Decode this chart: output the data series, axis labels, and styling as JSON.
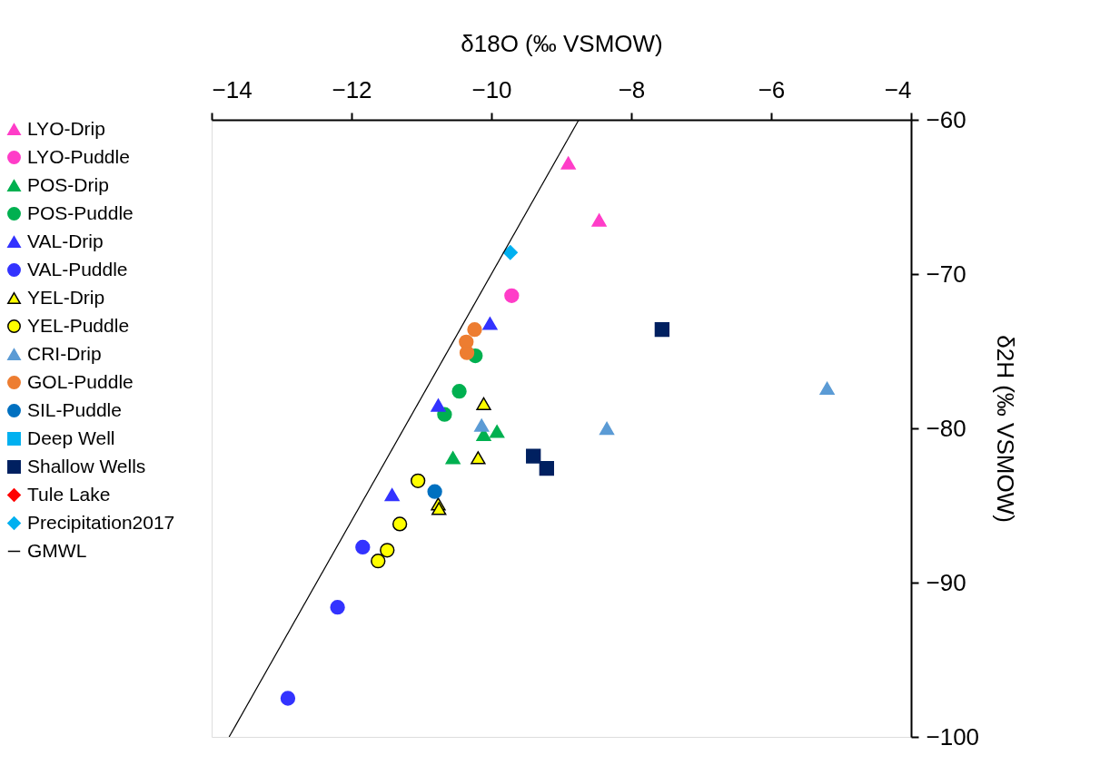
{
  "chart_data": {
    "type": "scatter",
    "xlabel": "δ18O (‰ VSMOW)",
    "ylabel": "δ2H (‰ VSMOW)",
    "xlim": [
      -14,
      -4
    ],
    "xticks": [
      -14,
      -12,
      -10,
      -8,
      -6,
      -4
    ],
    "ylim": [
      -100,
      -60
    ],
    "yticks": [
      -100,
      -90,
      -80,
      -70,
      -60
    ],
    "grid": false,
    "legend": "left",
    "series": [
      {
        "name": "LYO-Drip",
        "marker": "triangle",
        "color": "#ff3dc8",
        "x": [
          -8.9,
          -8.46
        ],
        "values": [
          -62.8,
          -66.5
        ]
      },
      {
        "name": "LYO-Puddle",
        "marker": "circle",
        "color": "#ff3dc8",
        "x": [
          -9.71
        ],
        "values": [
          -71.4
        ]
      },
      {
        "name": "POS-Drip",
        "marker": "triangle",
        "color": "#00b050",
        "x": [
          -9.92,
          -10.11,
          -10.55
        ],
        "values": [
          -80.2,
          -80.4,
          -81.9
        ]
      },
      {
        "name": "POS-Puddle",
        "marker": "circle",
        "color": "#00b050",
        "x": [
          -10.23,
          -10.46,
          -10.67
        ],
        "values": [
          -75.3,
          -77.6,
          -79.1
        ]
      },
      {
        "name": "VAL-Drip",
        "marker": "triangle",
        "color": "#3333ff",
        "x": [
          -10.02,
          -10.76,
          -11.42
        ],
        "values": [
          -73.2,
          -78.5,
          -84.3
        ]
      },
      {
        "name": "VAL-Puddle",
        "marker": "circle",
        "color": "#3333ff",
        "x": [
          -11.84,
          -12.2,
          -12.91
        ],
        "values": [
          -87.7,
          -91.6,
          -97.5
        ]
      },
      {
        "name": "YEL-Drip",
        "marker": "triangle",
        "color": "#ffff00",
        "x": [
          -10.11,
          -10.19,
          -10.76,
          -10.75
        ],
        "values": [
          -78.4,
          -81.9,
          -84.9,
          -85.2
        ]
      },
      {
        "name": "YEL-Puddle",
        "marker": "circle",
        "color": "#ffff00",
        "x": [
          -11.05,
          -11.31,
          -11.49,
          -11.62
        ],
        "values": [
          -83.4,
          -86.2,
          -87.9,
          -88.6
        ]
      },
      {
        "name": "CRI-Drip",
        "marker": "triangle",
        "color": "#5b9bd5",
        "x": [
          -10.14,
          -8.35,
          -5.2
        ],
        "values": [
          -79.8,
          -80.0,
          -77.4
        ]
      },
      {
        "name": "GOL-Puddle",
        "marker": "circle",
        "color": "#ed7d31",
        "x": [
          -10.24,
          -10.36,
          -10.35
        ],
        "values": [
          -73.6,
          -74.4,
          -75.1
        ]
      },
      {
        "name": "SIL-Puddle",
        "marker": "circle",
        "color": "#0070c0",
        "x": [
          -10.81
        ],
        "values": [
          -84.1
        ]
      },
      {
        "name": "Deep Well",
        "marker": "square",
        "color": "#00b0f0"
      },
      {
        "name": "Shallow Wells",
        "marker": "square",
        "color": "#002060",
        "x": [
          -9.4,
          -9.21,
          -7.56
        ],
        "values": [
          -81.8,
          -82.6,
          -73.6
        ]
      },
      {
        "name": "Tule Lake",
        "marker": "diamond",
        "color": "#ff0000"
      },
      {
        "name": "Precipitation2017",
        "marker": "diamond",
        "color": "#00b0f0",
        "x": [
          -9.73
        ],
        "values": [
          -68.6
        ]
      },
      {
        "name": "GMWL",
        "type": "line",
        "marker": "none",
        "line_style": "solid",
        "color": "#000000",
        "x": [
          -13.75,
          -8.75
        ],
        "values": [
          -100,
          -60
        ]
      }
    ]
  }
}
